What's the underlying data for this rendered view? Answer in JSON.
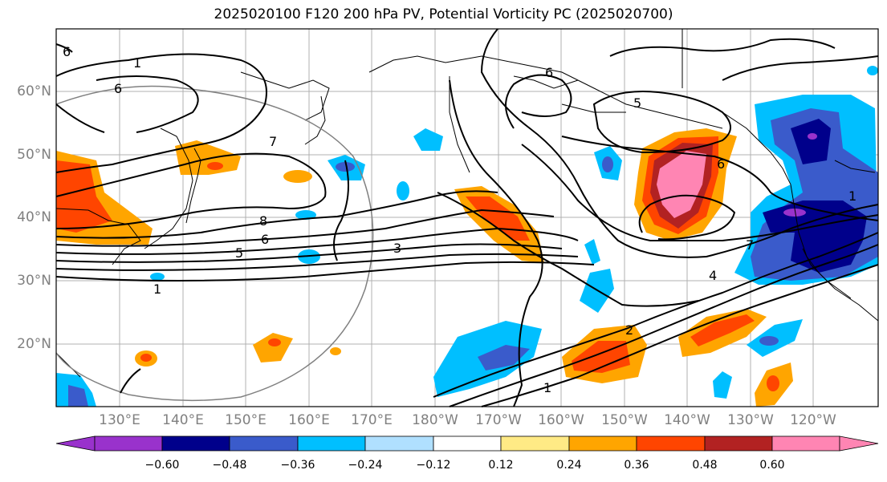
{
  "title": "2025020100 F120 200 hPa PV, Potential Vorticity PC (2025020700)",
  "lat_labels": [
    "60°N",
    "50°N",
    "40°N",
    "30°N",
    "20°N"
  ],
  "lon_labels": [
    "130°E",
    "140°E",
    "150°E",
    "160°E",
    "170°E",
    "180°W",
    "170°W",
    "160°W",
    "150°W",
    "140°W",
    "130°W",
    "120°W"
  ],
  "colorbar": {
    "ticks": [
      "−0.60",
      "−0.48",
      "−0.36",
      "−0.24",
      "−0.12",
      "0.12",
      "0.24",
      "0.36",
      "0.48",
      "0.60"
    ],
    "colors": [
      "#9932CC",
      "#00008B",
      "#3A5BCB",
      "#00BFFF",
      "#B0E0FF",
      "#FFFFFF",
      "#FFEA85",
      "#FFA500",
      "#FF4500",
      "#B22222",
      "#FF85B3"
    ]
  },
  "contour_labels": [
    "1",
    "6",
    "7",
    "8",
    "6",
    "5",
    "3",
    "1",
    "5",
    "6",
    "7",
    "4",
    "2",
    "1",
    "6",
    "1",
    "6"
  ],
  "colors": {
    "neg_strong": "#00008B",
    "neg_mid": "#3A5BCB",
    "neg_weak": "#00BFFF",
    "pos_weak": "#FFA500",
    "pos_mid": "#FF4500",
    "pos_strong": "#B22222",
    "pos_max": "#FF85B3"
  }
}
